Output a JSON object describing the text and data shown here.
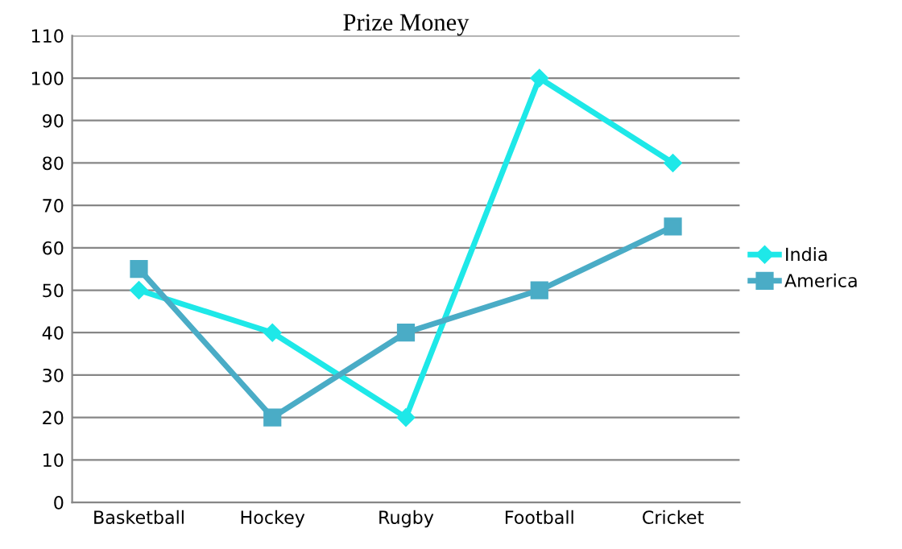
{
  "chart_data": {
    "type": "line",
    "title": "Prize Money",
    "categories": [
      "Basketball",
      "Hockey",
      "Rugby",
      "Football",
      "Cricket"
    ],
    "series": [
      {
        "name": "India",
        "color": "#1ee8e8",
        "marker": "diamond",
        "values": [
          50,
          40,
          20,
          100,
          80
        ]
      },
      {
        "name": "America",
        "color": "#4aacc6",
        "marker": "square",
        "values": [
          55,
          20,
          40,
          50,
          65
        ]
      }
    ],
    "ylim": [
      0,
      110
    ],
    "yticks": [
      0,
      10,
      20,
      30,
      40,
      50,
      60,
      70,
      80,
      90,
      100,
      110
    ],
    "grid": "y",
    "legend": "right",
    "line_style": "solid"
  }
}
